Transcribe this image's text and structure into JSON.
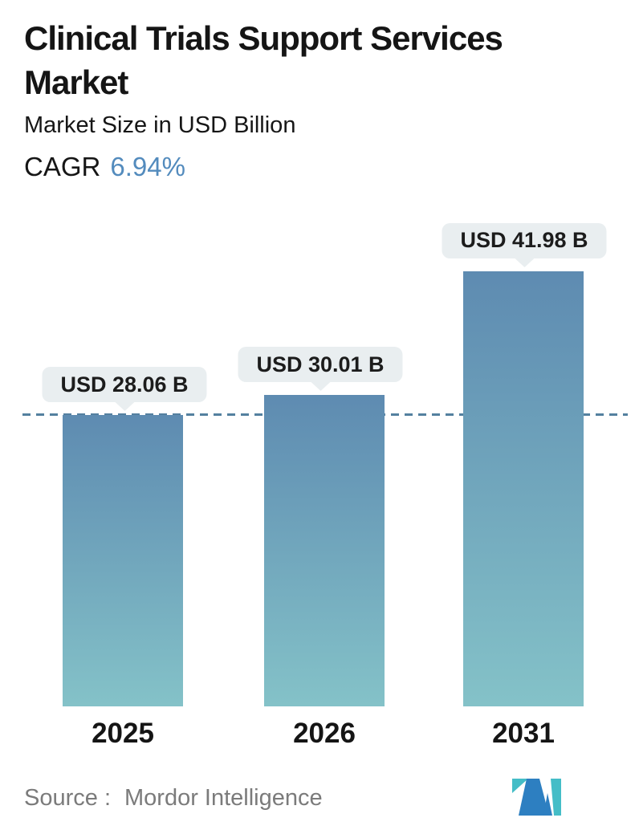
{
  "header": {
    "title_line1": "Clinical Trials Support Services",
    "title_line2": "Market",
    "subtitle": "Market Size in USD Billion",
    "cagr_label": "CAGR",
    "cagr_value": "6.94%"
  },
  "chart_data": {
    "type": "bar",
    "title": "Clinical Trials Support Services Market",
    "unit": "USD Billion",
    "categories": [
      "2025",
      "2026",
      "2031"
    ],
    "values": [
      28.06,
      30.01,
      41.98
    ],
    "bar_labels": [
      "USD 28.06 B",
      "USD 30.01 B",
      "USD 41.98 B"
    ],
    "cagr_percent": 6.94,
    "reference_line": {
      "value": 28.06,
      "style": "dashed",
      "note": "level of 2025 bar"
    },
    "ylim": [
      0,
      45
    ],
    "grid": false,
    "legend": false,
    "colors": {
      "bar_gradient_top": "#5e8bb1",
      "bar_gradient_bottom": "#84c2c8",
      "dashed_line": "#54809f",
      "label_pill_bg": "#e9eef0",
      "cagr_accent": "#538bbd",
      "source_gray": "#7b7b7b"
    }
  },
  "footer": {
    "source_label": "Source :",
    "source_name": "Mordor Intelligence",
    "logo": "mordor-intelligence-logo"
  }
}
